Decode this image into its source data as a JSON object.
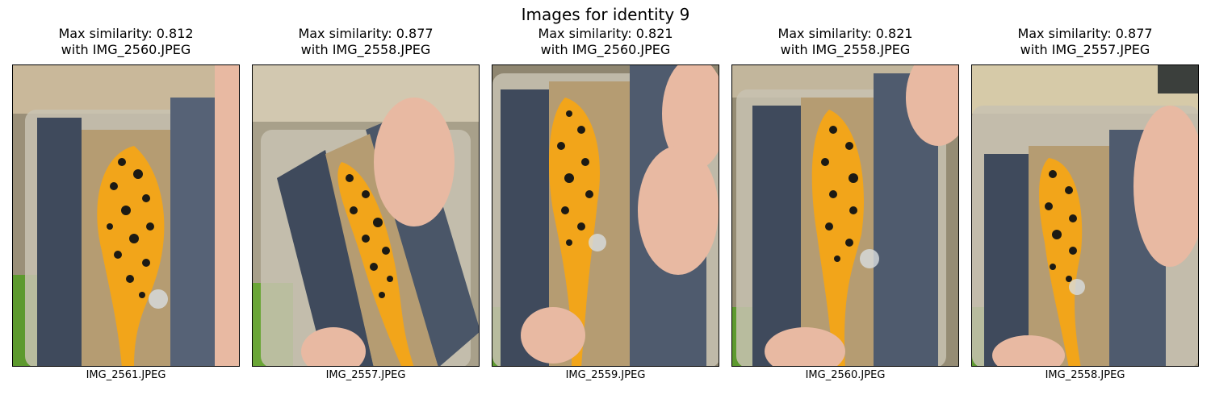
{
  "figure": {
    "suptitle": "Images for identity 9"
  },
  "panels": [
    {
      "title_line1": "Max similarity: 0.812",
      "title_line2": "with IMG_2560.JPEG",
      "caption": "IMG_2561.JPEG"
    },
    {
      "title_line1": "Max similarity: 0.877",
      "title_line2": "with IMG_2558.JPEG",
      "caption": "IMG_2557.JPEG"
    },
    {
      "title_line1": "Max similarity: 0.821",
      "title_line2": "with IMG_2560.JPEG",
      "caption": "IMG_2559.JPEG"
    },
    {
      "title_line1": "Max similarity: 0.821",
      "title_line2": "with IMG_2558.JPEG",
      "caption": "IMG_2560.JPEG"
    },
    {
      "title_line1": "Max similarity: 0.877",
      "title_line2": "with IMG_2557.JPEG",
      "caption": "IMG_2558.JPEG"
    }
  ],
  "colors": {
    "belly": "#f2a51a",
    "spots": "#1c1a14",
    "sand": "#b59c72",
    "mesh": "#3f4a5c",
    "grass": "#5d9a2e",
    "skin": "#e8b9a2"
  }
}
